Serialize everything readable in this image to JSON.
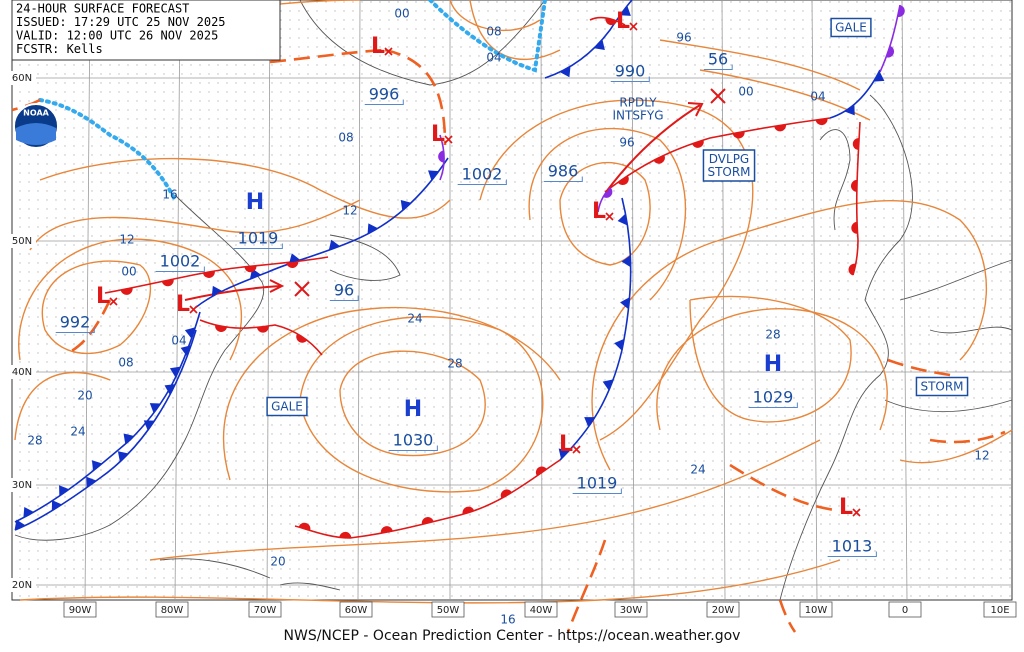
{
  "header": {
    "title": "24-HOUR SURFACE FORECAST",
    "issued": "ISSUED: 17:29 UTC 25 NOV 2025",
    "valid": "VALID:  12:00 UTC 26 NOV 2025",
    "forecaster": "FCSTR:  Kells"
  },
  "logo": "NOAA",
  "highs": [
    {
      "symbol": "H",
      "pressure": "1019"
    },
    {
      "symbol": "H",
      "pressure": "1030"
    },
    {
      "symbol": "H",
      "pressure": "1029"
    }
  ],
  "lows": [
    {
      "symbol": "L",
      "pressure": "996"
    },
    {
      "symbol": "L",
      "pressure": "1002"
    },
    {
      "symbol": "L",
      "pressure": "990"
    },
    {
      "symbol": "L",
      "pressure": "986"
    },
    {
      "symbol": "L",
      "pressure": "1002"
    },
    {
      "symbol": "L",
      "pressure": "992"
    },
    {
      "symbol": "L",
      "pressure": "1019"
    },
    {
      "symbol": "L",
      "pressure": "1013"
    }
  ],
  "developing_lows": [
    {
      "pressure": "56"
    },
    {
      "pressure": "96"
    }
  ],
  "isobar_labels": [
    "00",
    "08",
    "04",
    "96",
    "00",
    "04",
    "96",
    "08",
    "12",
    "16",
    "12",
    "00",
    "04",
    "08",
    "20",
    "24",
    "28",
    "24",
    "28",
    "28",
    "24",
    "20",
    "16",
    "12"
  ],
  "warnings": [
    [
      "GALE"
    ],
    [
      "GALE"
    ],
    [
      "DVLPG",
      "STORM"
    ],
    [
      "STORM"
    ]
  ],
  "notes": [
    "RPDLY",
    "INTSFYG"
  ],
  "latitude_labels": [
    "60N",
    "50N",
    "40N",
    "30N",
    "20N"
  ],
  "longitude_labels": [
    "90W",
    "80W",
    "70W",
    "60W",
    "50W",
    "40W",
    "30W",
    "20W",
    "10W",
    "0",
    "10E"
  ],
  "footer": "NWS/NCEP - Ocean Prediction Center - https://ocean.weather.gov"
}
